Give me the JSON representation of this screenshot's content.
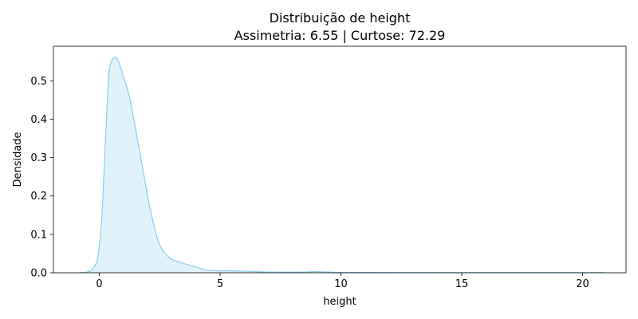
{
  "chart_data": {
    "type": "area",
    "title": "Distribuição de height",
    "subtitle": "Assimetria: 6.55 | Curtose: 72.29",
    "xlabel": "height",
    "ylabel": "Densidade",
    "xlim": [
      -1.9,
      21.8
    ],
    "ylim": [
      0,
      0.59
    ],
    "xticks": [
      0,
      5,
      10,
      15,
      20
    ],
    "xtick_labels": [
      "0",
      "5",
      "10",
      "15",
      "20"
    ],
    "yticks": [
      0.0,
      0.1,
      0.2,
      0.3,
      0.4,
      0.5
    ],
    "ytick_labels": [
      "0.0",
      "0.1",
      "0.2",
      "0.3",
      "0.4",
      "0.5"
    ],
    "grid": false,
    "colors": {
      "line": "#87ceeb",
      "fill": "#87ceeb",
      "fill_opacity": 0.25,
      "axes": "#000000"
    },
    "series": [
      {
        "x": [
          -0.8,
          -0.5,
          -0.3,
          -0.1,
          0.0,
          0.1,
          0.2,
          0.3,
          0.4,
          0.5,
          0.6,
          0.7,
          0.8,
          0.9,
          1.0,
          1.2,
          1.4,
          1.6,
          1.8,
          2.0,
          2.2,
          2.4,
          2.6,
          2.8,
          3.0,
          3.3,
          3.6,
          4.0,
          4.3,
          4.6,
          5.0,
          5.5,
          6.0,
          6.5,
          7.0,
          8.0,
          8.5,
          9.0,
          9.5,
          10.0,
          12.0,
          15.0,
          18.0,
          20.0,
          20.9
        ],
        "values": [
          0.0,
          0.002,
          0.008,
          0.03,
          0.07,
          0.14,
          0.27,
          0.41,
          0.52,
          0.55,
          0.56,
          0.56,
          0.55,
          0.53,
          0.51,
          0.47,
          0.41,
          0.34,
          0.27,
          0.2,
          0.14,
          0.09,
          0.06,
          0.045,
          0.035,
          0.028,
          0.022,
          0.015,
          0.009,
          0.006,
          0.005,
          0.005,
          0.004,
          0.003,
          0.002,
          0.0015,
          0.002,
          0.003,
          0.002,
          0.001,
          0.0005,
          0.0003,
          0.0003,
          0.0003,
          0.0002
        ]
      }
    ]
  }
}
